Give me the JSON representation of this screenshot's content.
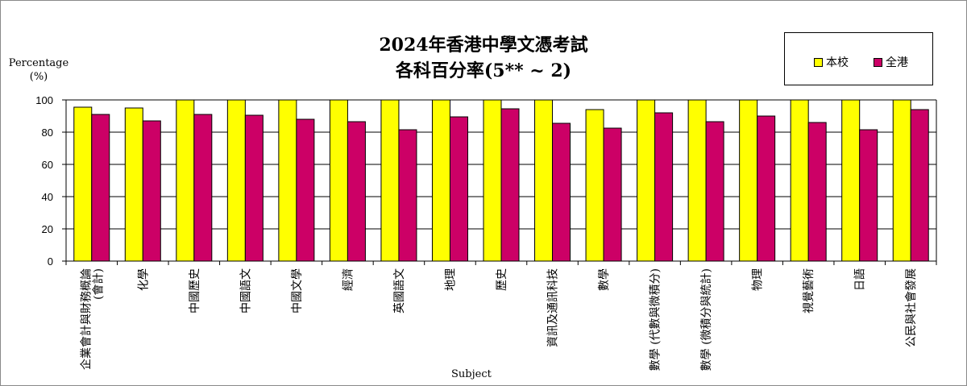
{
  "chart_data": {
    "type": "bar",
    "title": "2024年香港中學文憑考試",
    "subtitle": "各科百分率(5** ~ 2)",
    "ylabel_lines": [
      "Percentage",
      "(%)"
    ],
    "xlabel": "Subject",
    "ylim": [
      0,
      100
    ],
    "yticks": [
      "0",
      "20",
      "40",
      "60",
      "80",
      "100"
    ],
    "grid": true,
    "legend_position": "top-right",
    "categories": [
      "企業會計與財務概論(會計)",
      "化學",
      "中國歷史",
      "中國語文",
      "中國文學",
      "經濟",
      "英國語文",
      "地理",
      "歷史",
      "資訊及通訊科技",
      "數學",
      "數學 (代數與微積分)",
      "數學 (微積分與統計)",
      "物理",
      "視覺藝術",
      "日語",
      "公民與社會發展"
    ],
    "series": [
      {
        "name": "本校",
        "color": "#ffff00",
        "values": [
          95.5,
          95,
          100,
          100,
          100,
          100,
          100,
          100,
          100,
          100,
          94,
          100,
          100,
          100,
          100,
          100,
          100
        ]
      },
      {
        "name": "全港",
        "color": "#cc0066",
        "values": [
          91,
          87,
          91,
          90.5,
          88,
          86.5,
          81.5,
          89.5,
          94.5,
          85.5,
          82.5,
          92,
          86.5,
          90,
          86,
          81.5,
          94
        ]
      }
    ]
  }
}
